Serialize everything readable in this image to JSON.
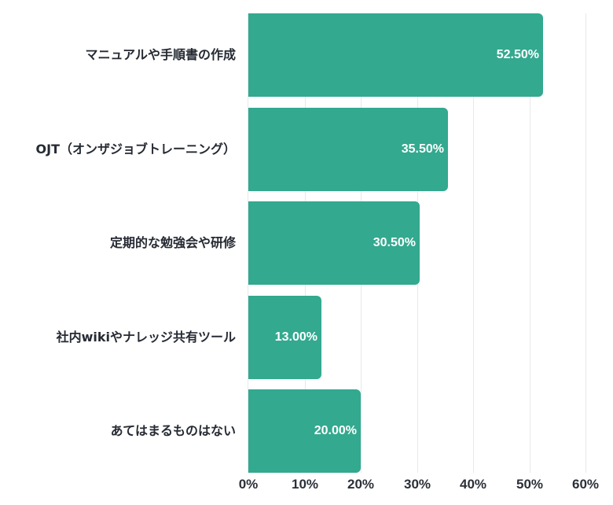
{
  "chart_data": {
    "type": "bar",
    "orientation": "horizontal",
    "title": "",
    "xlabel": "",
    "ylabel": "",
    "categories": [
      "マニュアルや手順書の作成",
      "OJT（オンザジョブトレーニング）",
      "定期的な勉強会や研修",
      "社内wikiやナレッジ共有ツール",
      "あてはまるものはない"
    ],
    "values": [
      52.5,
      35.5,
      30.5,
      13.0,
      20.0
    ],
    "value_labels": [
      "52.50%",
      "35.50%",
      "30.50%",
      "13.00%",
      "20.00%"
    ],
    "xlim": [
      0,
      60
    ],
    "x_ticks": [
      "0%",
      "10%",
      "20%",
      "30%",
      "40%",
      "50%",
      "60%"
    ],
    "grid": "vertical",
    "legend": "none",
    "bar_color": "#33a98f"
  }
}
